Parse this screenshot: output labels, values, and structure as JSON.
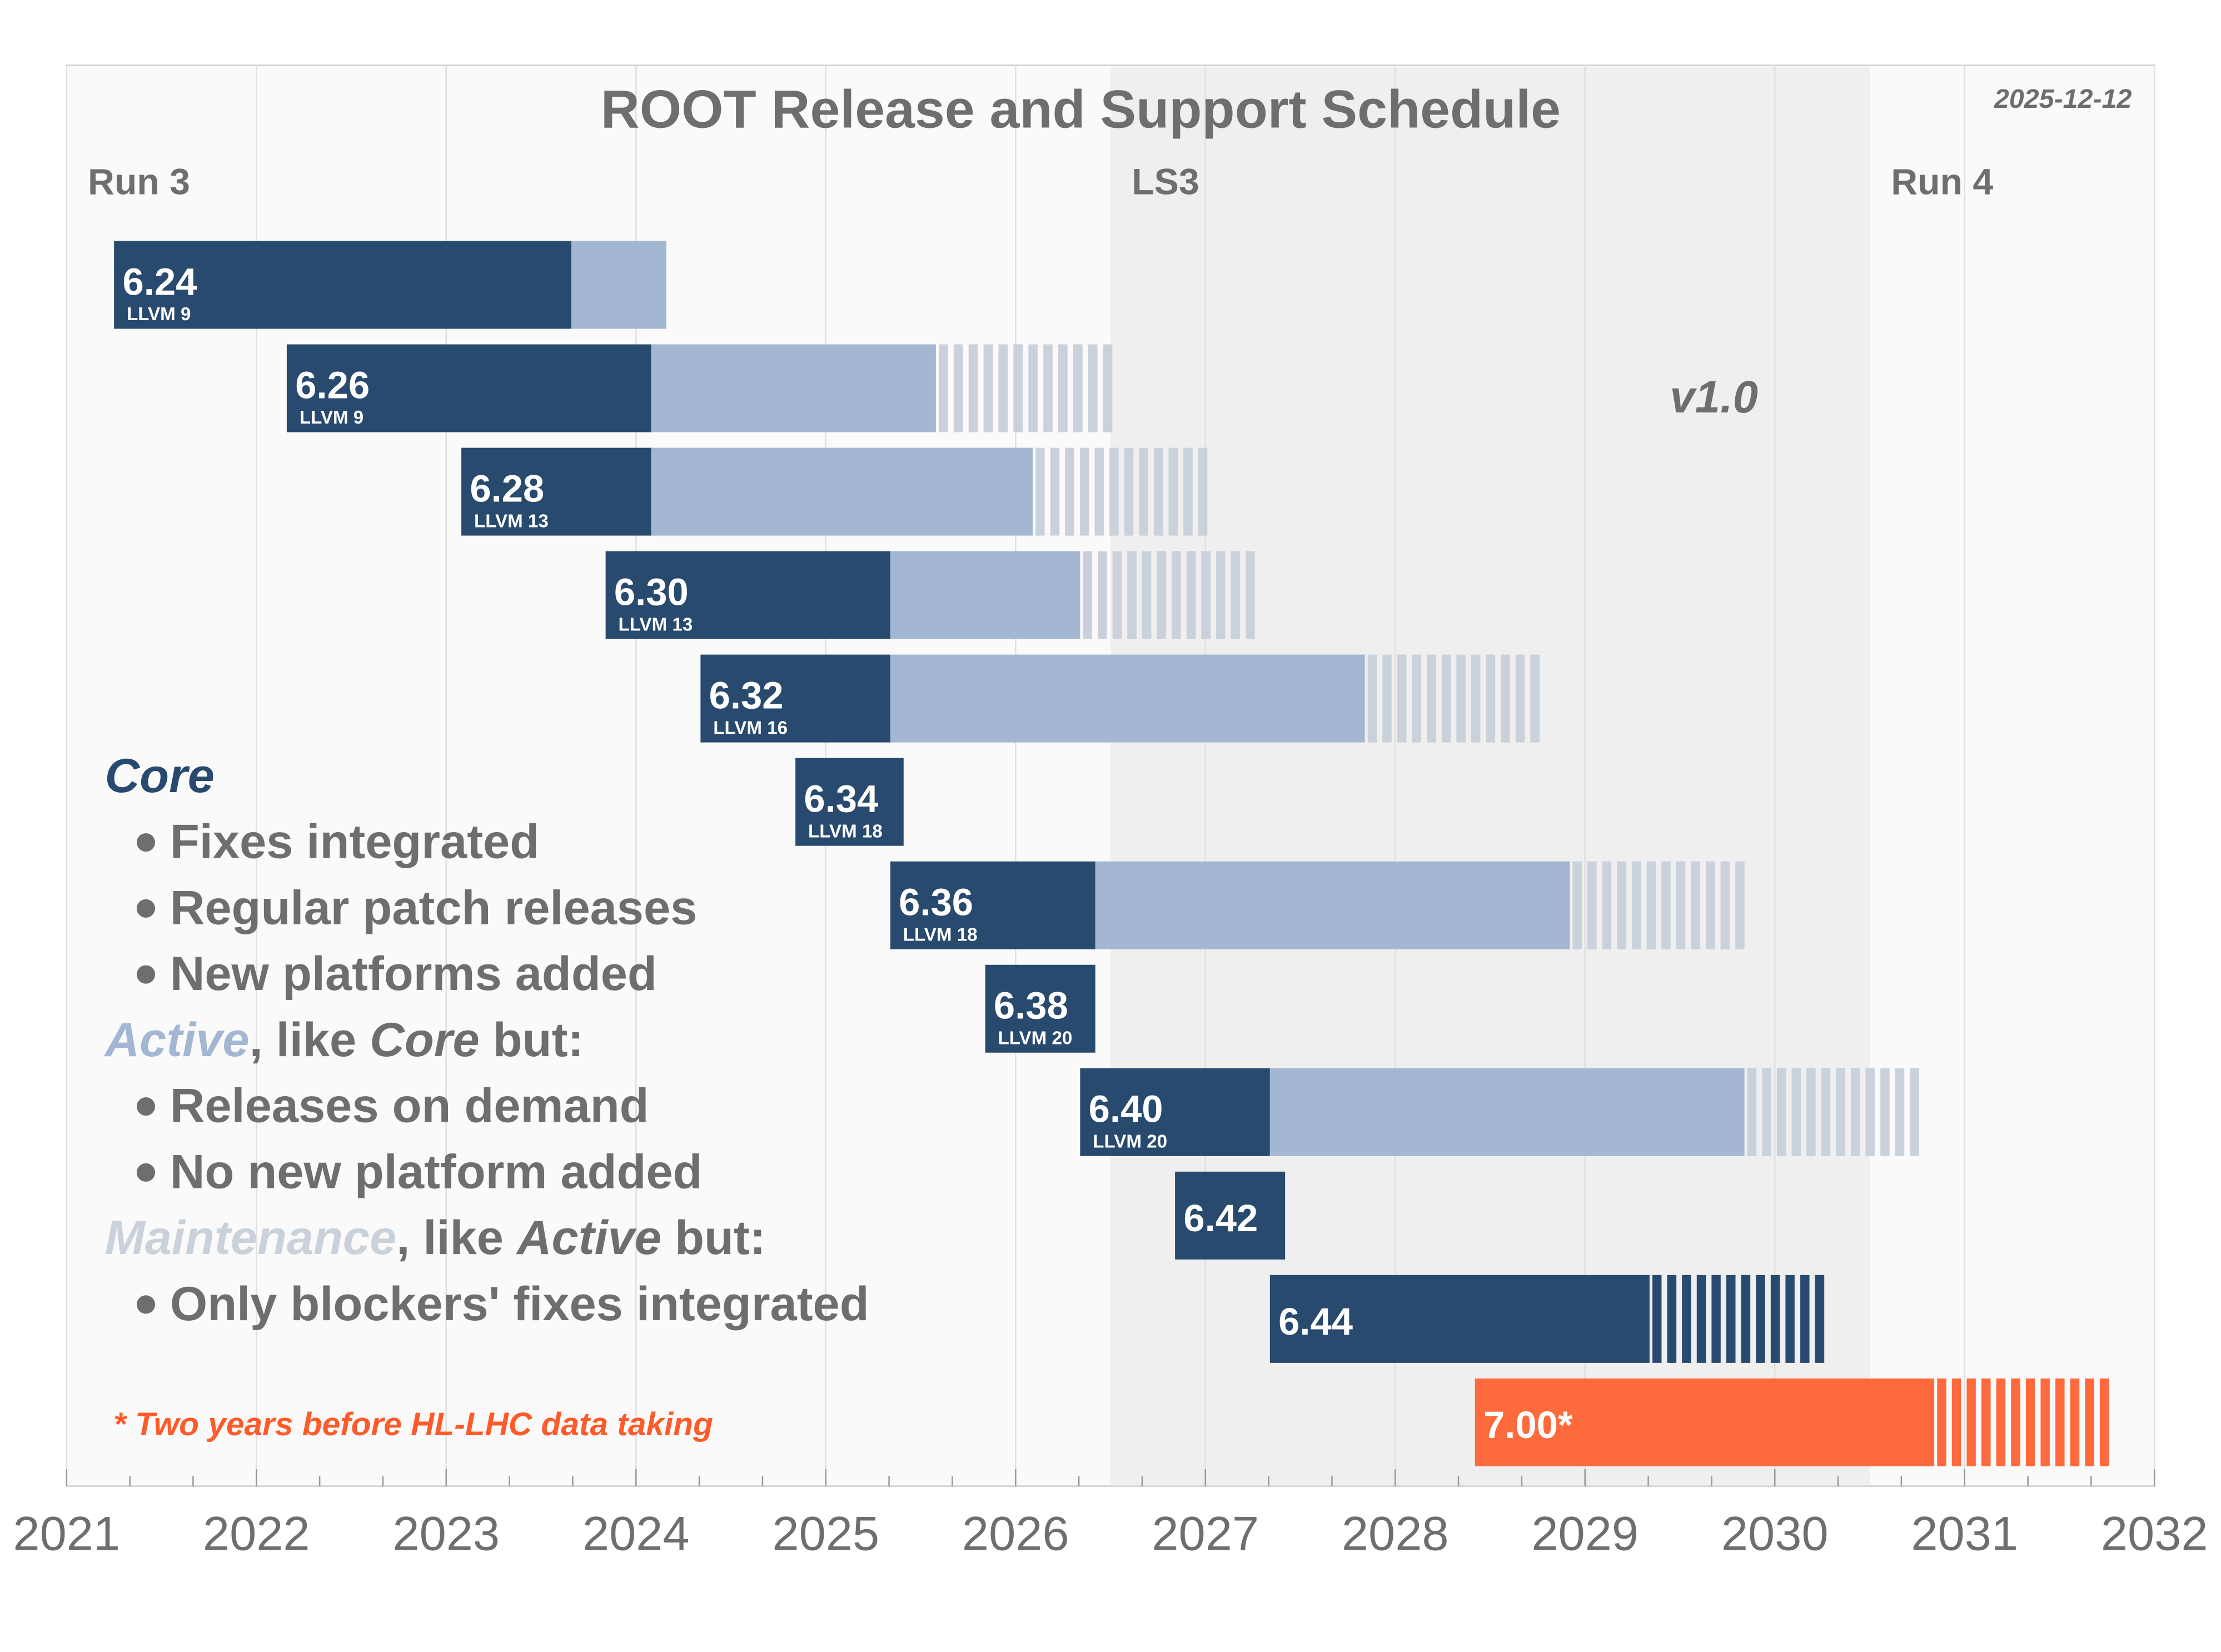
{
  "chart_data": {
    "type": "timeline",
    "title": "ROOT Release and Support Schedule",
    "date": "2025-12-12",
    "version": "v1.0",
    "footnote": "* Two years before HL-LHC data taking",
    "xlim": [
      2021,
      2032
    ],
    "xticks": [
      2021,
      2022,
      2023,
      2024,
      2025,
      2026,
      2027,
      2028,
      2029,
      2030,
      2031,
      2032
    ],
    "grid": true,
    "colors": {
      "core": "#284a6e",
      "active": "#a3b7d3",
      "maintenance": "#c9d1da",
      "shade": "#efefef"
    },
    "periods": [
      {
        "name": "Run 3",
        "start": 2021,
        "end": 2026.5,
        "shaded": false
      },
      {
        "name": "LS3",
        "start": 2026.5,
        "end": 2030.5,
        "shaded": true
      },
      {
        "name": "Run 4",
        "start": 2030.5,
        "end": 2032,
        "shaded": false
      }
    ],
    "releases": [
      {
        "name": "6.24",
        "llvm": "LLVM 9",
        "start": 2021.25,
        "core_end": 2023.66,
        "active_end": 2024.16,
        "maintenance_end": null
      },
      {
        "name": "6.26",
        "llvm": "LLVM 9",
        "start": 2022.16,
        "core_end": 2024.08,
        "active_end": 2025.58,
        "maintenance_end": 2026.54
      },
      {
        "name": "6.28",
        "llvm": "LLVM 13",
        "start": 2023.08,
        "core_end": 2024.08,
        "active_end": 2026.09,
        "maintenance_end": 2027.04
      },
      {
        "name": "6.30",
        "llvm": "LLVM 13",
        "start": 2023.84,
        "core_end": 2025.34,
        "active_end": 2026.34,
        "maintenance_end": 2027.29
      },
      {
        "name": "6.32",
        "llvm": "LLVM 16",
        "start": 2024.34,
        "core_end": 2025.34,
        "active_end": 2027.84,
        "maintenance_end": 2028.79
      },
      {
        "name": "6.34",
        "llvm": "LLVM 18",
        "start": 2024.84,
        "core_end": 2025.41,
        "active_end": null,
        "maintenance_end": null
      },
      {
        "name": "6.36",
        "llvm": "LLVM 18",
        "start": 2025.34,
        "core_end": 2026.42,
        "active_end": 2028.92,
        "maintenance_end": 2029.87
      },
      {
        "name": "6.38",
        "llvm": "LLVM 20",
        "start": 2025.84,
        "core_end": 2026.42,
        "active_end": null,
        "maintenance_end": null
      },
      {
        "name": "6.40",
        "llvm": "LLVM 20",
        "start": 2026.34,
        "core_end": 2027.34,
        "active_end": 2029.84,
        "maintenance_end": 2030.79
      },
      {
        "name": "6.42",
        "llvm": null,
        "start": 2026.84,
        "core_end": 2027.42,
        "active_end": null,
        "maintenance_end": null
      },
      {
        "name": "6.44",
        "llvm": null,
        "start": 2027.34,
        "core_end": 2029.34,
        "active_end": null,
        "maintenance_end": 2030.29
      },
      {
        "name": "7.00*",
        "llvm": null,
        "start": 2028.42,
        "core_end": 2030.84,
        "active_end": null,
        "maintenance_end": 2031.79,
        "color": "#ff6a3d"
      }
    ],
    "legend": [
      {
        "bullet": false,
        "parts": [
          {
            "text": "Core",
            "style": "core"
          }
        ]
      },
      {
        "bullet": true,
        "parts": [
          {
            "text": "Fixes integrated",
            "style": "plain"
          }
        ]
      },
      {
        "bullet": true,
        "parts": [
          {
            "text": "Regular patch releases",
            "style": "plain"
          }
        ]
      },
      {
        "bullet": true,
        "parts": [
          {
            "text": "New platforms added",
            "style": "plain"
          }
        ]
      },
      {
        "bullet": false,
        "parts": [
          {
            "text": "Active",
            "style": "active"
          },
          {
            "text": ", like ",
            "style": "plain"
          },
          {
            "text": "Core",
            "style": "italic"
          },
          {
            "text": " but:",
            "style": "plain"
          }
        ]
      },
      {
        "bullet": true,
        "parts": [
          {
            "text": "Releases on demand",
            "style": "plain"
          }
        ]
      },
      {
        "bullet": true,
        "parts": [
          {
            "text": "No new platform added",
            "style": "plain"
          }
        ]
      },
      {
        "bullet": false,
        "parts": [
          {
            "text": "Maintenance",
            "style": "maintenance"
          },
          {
            "text": ", like ",
            "style": "plain"
          },
          {
            "text": "Active",
            "style": "italic"
          },
          {
            "text": " but:",
            "style": "plain"
          }
        ]
      },
      {
        "bullet": true,
        "parts": [
          {
            "text": "Only blockers' fixes integrated",
            "style": "plain"
          }
        ]
      }
    ]
  }
}
